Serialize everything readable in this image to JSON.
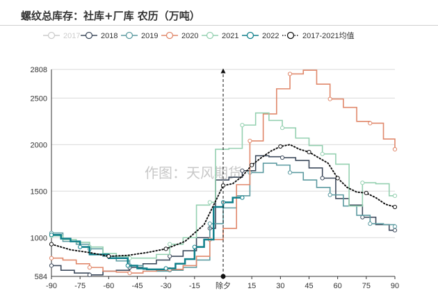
{
  "chart_data": {
    "type": "line",
    "title": "螺纹总库存：社库+厂库 农历（万吨）",
    "xlabel": "",
    "ylabel": "",
    "xlim": [
      -90,
      90
    ],
    "ylim": [
      584,
      2808
    ],
    "x_ticks": [
      -90,
      -75,
      -60,
      -45,
      -30,
      -15,
      0,
      15,
      30,
      45,
      60,
      75,
      90
    ],
    "x_tick_labels": [
      "-90",
      "-75",
      "-60",
      "-45",
      "-30",
      "-15",
      "除夕",
      "15",
      "30",
      "45",
      "60",
      "75",
      "90"
    ],
    "y_ticks": [
      584,
      1000,
      1500,
      2000,
      2500,
      2808
    ],
    "grid": "horizontal",
    "legend_position": "top",
    "annotation": {
      "label": "除夕",
      "x": 0
    },
    "watermark": "作图：天风期货",
    "series": [
      {
        "name": "2017",
        "color": "#cccccc",
        "hidden": true,
        "style": "step",
        "points": []
      },
      {
        "name": "2018",
        "color": "#3d4a5c",
        "style": "step",
        "points": [
          [
            -90,
            700
          ],
          [
            -85,
            650
          ],
          [
            -78,
            620
          ],
          [
            -70,
            600
          ],
          [
            -63,
            640
          ],
          [
            -56,
            650
          ],
          [
            -49,
            680
          ],
          [
            -42,
            720
          ],
          [
            -35,
            760
          ],
          [
            -28,
            800
          ],
          [
            -21,
            860
          ],
          [
            -14,
            1000
          ],
          [
            -7,
            1100
          ],
          [
            -4,
            1620
          ],
          [
            3,
            1650
          ],
          [
            10,
            1720
          ],
          [
            17,
            1880
          ],
          [
            24,
            1870
          ],
          [
            31,
            1860
          ],
          [
            38,
            1830
          ],
          [
            45,
            1750
          ],
          [
            52,
            1640
          ],
          [
            59,
            1420
          ],
          [
            66,
            1350
          ],
          [
            73,
            1220
          ],
          [
            80,
            1140
          ],
          [
            87,
            1080
          ],
          [
            90,
            1080
          ]
        ]
      },
      {
        "name": "2019",
        "color": "#5b9aa0",
        "style": "step",
        "points": [
          [
            -90,
            1050
          ],
          [
            -84,
            960
          ],
          [
            -77,
            930
          ],
          [
            -70,
            880
          ],
          [
            -63,
            800
          ],
          [
            -56,
            750
          ],
          [
            -49,
            700
          ],
          [
            -42,
            660
          ],
          [
            -35,
            640
          ],
          [
            -28,
            650
          ],
          [
            -21,
            680
          ],
          [
            -14,
            760
          ],
          [
            -7,
            1150
          ],
          [
            0,
            1320
          ],
          [
            7,
            1450
          ],
          [
            14,
            1700
          ],
          [
            21,
            1800
          ],
          [
            28,
            1780
          ],
          [
            35,
            1700
          ],
          [
            42,
            1620
          ],
          [
            49,
            1540
          ],
          [
            56,
            1460
          ],
          [
            63,
            1340
          ],
          [
            70,
            1240
          ],
          [
            77,
            1150
          ],
          [
            84,
            1140
          ],
          [
            90,
            1120
          ]
        ]
      },
      {
        "name": "2020",
        "color": "#e0876a",
        "style": "step",
        "points": [
          [
            -90,
            780
          ],
          [
            -84,
            760
          ],
          [
            -77,
            720
          ],
          [
            -70,
            680
          ],
          [
            -63,
            640
          ],
          [
            -56,
            630
          ],
          [
            -49,
            620
          ],
          [
            -42,
            640
          ],
          [
            -35,
            650
          ],
          [
            -28,
            660
          ],
          [
            -21,
            700
          ],
          [
            -14,
            800
          ],
          [
            -7,
            980
          ],
          [
            0,
            1100
          ],
          [
            7,
            1570
          ],
          [
            14,
            2040
          ],
          [
            21,
            2330
          ],
          [
            28,
            2600
          ],
          [
            35,
            2760
          ],
          [
            42,
            2800
          ],
          [
            49,
            2650
          ],
          [
            56,
            2490
          ],
          [
            63,
            2400
          ],
          [
            70,
            2250
          ],
          [
            77,
            2230
          ],
          [
            84,
            2060
          ],
          [
            90,
            1950
          ]
        ]
      },
      {
        "name": "2021",
        "color": "#94d0b0",
        "style": "step",
        "points": [
          [
            -90,
            1020
          ],
          [
            -84,
            980
          ],
          [
            -77,
            950
          ],
          [
            -70,
            900
          ],
          [
            -63,
            830
          ],
          [
            -56,
            800
          ],
          [
            -49,
            780
          ],
          [
            -42,
            780
          ],
          [
            -35,
            820
          ],
          [
            -28,
            930
          ],
          [
            -21,
            1000
          ],
          [
            -14,
            1350
          ],
          [
            -7,
            1380
          ],
          [
            -4,
            1950
          ],
          [
            3,
            1960
          ],
          [
            10,
            2210
          ],
          [
            17,
            2340
          ],
          [
            24,
            2260
          ],
          [
            31,
            2180
          ],
          [
            38,
            2070
          ],
          [
            45,
            1990
          ],
          [
            52,
            1900
          ],
          [
            59,
            1790
          ],
          [
            66,
            1340
          ],
          [
            73,
            1590
          ],
          [
            80,
            1580
          ],
          [
            87,
            1450
          ],
          [
            90,
            1450
          ]
        ]
      },
      {
        "name": "2022",
        "color": "#0f7f8a",
        "style": "step",
        "line_width": 2.5,
        "points": [
          [
            -90,
            1030
          ],
          [
            -85,
            990
          ],
          [
            -80,
            960
          ],
          [
            -75,
            900
          ],
          [
            -70,
            820
          ],
          [
            -60,
            780
          ],
          [
            -50,
            700
          ],
          [
            -45,
            670
          ],
          [
            -40,
            660
          ],
          [
            -30,
            670
          ],
          [
            -25,
            720
          ],
          [
            -20,
            770
          ],
          [
            -15,
            900
          ],
          [
            -10,
            980
          ],
          [
            -5,
            1330
          ],
          [
            0,
            1380
          ],
          [
            5,
            1430
          ],
          [
            10,
            1430
          ]
        ]
      },
      {
        "name": "2017-2021均值",
        "color": "#111111",
        "style": "dotted",
        "points": [
          [
            -90,
            930
          ],
          [
            -80,
            870
          ],
          [
            -70,
            840
          ],
          [
            -60,
            800
          ],
          [
            -50,
            810
          ],
          [
            -40,
            840
          ],
          [
            -30,
            880
          ],
          [
            -20,
            960
          ],
          [
            -10,
            1140
          ],
          [
            0,
            1560
          ],
          [
            5,
            1580
          ],
          [
            10,
            1660
          ],
          [
            15,
            1780
          ],
          [
            20,
            1860
          ],
          [
            25,
            1930
          ],
          [
            30,
            1980
          ],
          [
            35,
            2000
          ],
          [
            40,
            1950
          ],
          [
            45,
            1920
          ],
          [
            50,
            1860
          ],
          [
            55,
            1800
          ],
          [
            60,
            1640
          ],
          [
            65,
            1540
          ],
          [
            70,
            1490
          ],
          [
            75,
            1480
          ],
          [
            80,
            1430
          ],
          [
            85,
            1360
          ],
          [
            90,
            1330
          ]
        ]
      }
    ]
  }
}
